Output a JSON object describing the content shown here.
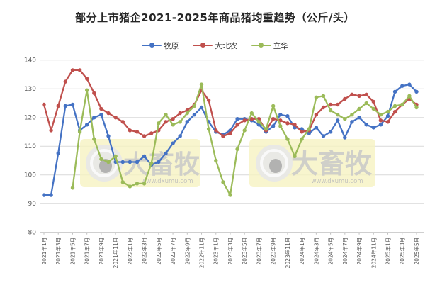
{
  "title": "部分上市猪企2021-2025年商品猪均重趋势（公斤/头）",
  "legend": [
    {
      "label": "牧原",
      "color": "#4472C4"
    },
    {
      "label": "大北农",
      "color": "#C0504D"
    },
    {
      "label": "立华",
      "color": "#9BBB59"
    }
  ],
  "watermark": {
    "text": "大畜牧",
    "url": "www.dxumu.com"
  },
  "chart_data": {
    "type": "line",
    "title": "部分上市猪企2021-2025年商品猪均重趋势（公斤/头）",
    "y_axis": {
      "min": 80,
      "max": 140,
      "step": 10,
      "tick_labels": [
        "80",
        "90",
        "100",
        "110",
        "120",
        "130",
        "140"
      ]
    },
    "x_tick_labels": [
      "2021年1月",
      "2021年3月",
      "2021年5月",
      "2021年7月",
      "2021年9月",
      "2021年11月",
      "2022年1月",
      "2022年3月",
      "2022年5月",
      "2022年7月",
      "2022年9月",
      "2022年11月",
      "2023年1月",
      "2023年3月",
      "2023年5月",
      "2023年7月",
      "2023年9月",
      "2023年11月",
      "2024年1月",
      "2024年3月",
      "2024年5月",
      "2024年7月",
      "2024年9月",
      "2024年11月",
      "2025年1月",
      "2025年3月",
      "2025年5月"
    ],
    "x_tick_every": 2,
    "points_per_series": 53,
    "grid": true,
    "legend_position": "top",
    "series": [
      {
        "name": "牧原",
        "color": "#4472C4",
        "values": [
          93,
          93,
          107.5,
          124,
          124.5,
          115.5,
          117.5,
          120,
          121,
          113.5,
          104.5,
          104.5,
          104.5,
          104.5,
          106.5,
          103.5,
          104.5,
          107.5,
          111,
          113.5,
          118.5,
          121,
          123.5,
          118.5,
          115,
          114,
          115.5,
          119.5,
          119.5,
          119,
          117.5,
          115,
          117,
          121,
          120.5,
          116.5,
          116,
          114.5,
          116.5,
          113.5,
          115,
          119,
          113,
          118.5,
          120,
          117.5,
          116.5,
          117.5,
          120.5,
          129,
          131,
          131.5,
          129
        ]
      },
      {
        "name": "大北农",
        "color": "#C0504D",
        "values": [
          124.5,
          115.5,
          124,
          132.5,
          136.5,
          136.5,
          133.5,
          128.5,
          123,
          121.5,
          120,
          118.5,
          115.5,
          115,
          113.5,
          114.5,
          115.5,
          118.5,
          119.5,
          121.5,
          122.5,
          124.5,
          129.5,
          126,
          115.5,
          113.5,
          114.5,
          117.5,
          119,
          119.5,
          119.5,
          115.5,
          119.5,
          119,
          118,
          117.5,
          115,
          115.5,
          121,
          123.5,
          124.5,
          124.5,
          126.5,
          128,
          127.5,
          128,
          125.5,
          119,
          118.5,
          122,
          124.5,
          126.5,
          124.5
        ]
      },
      {
        "name": "立华",
        "color": "#9BBB59",
        "values": [
          null,
          null,
          null,
          null,
          95.5,
          115,
          129.5,
          112.5,
          105.5,
          104.5,
          106.5,
          97.5,
          96,
          97,
          97,
          104,
          118,
          121,
          117.5,
          118.5,
          121.5,
          124,
          131.5,
          116,
          105,
          97.5,
          93,
          109,
          115.5,
          121.5,
          118.5,
          116,
          124,
          117,
          112.5,
          106.5,
          112.5,
          116,
          127,
          127.5,
          122.5,
          121,
          119.5,
          121,
          123,
          125,
          123,
          121,
          122,
          124,
          124.5,
          127.5,
          123.5
        ]
      }
    ]
  }
}
